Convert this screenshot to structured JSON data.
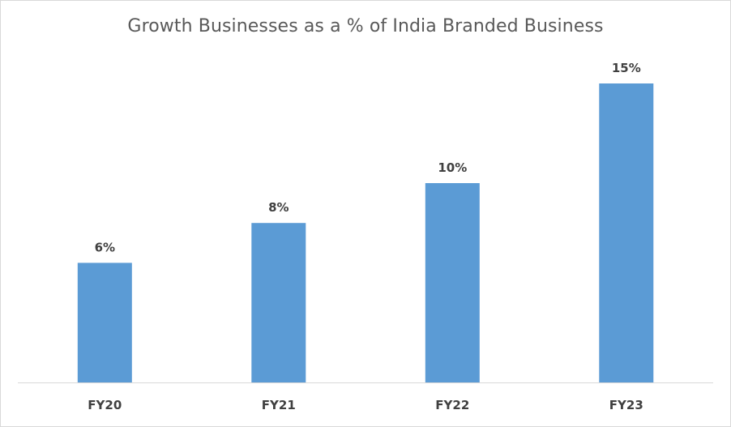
{
  "chart_data": {
    "type": "bar",
    "title": "Growth Businesses as a % of India Branded Business",
    "categories": [
      "FY20",
      "FY21",
      "FY22",
      "FY23"
    ],
    "values": [
      6,
      8,
      10,
      15
    ],
    "data_labels": [
      "6%",
      "8%",
      "10%",
      "15%"
    ],
    "unit": "%",
    "ylim": [
      0,
      15
    ],
    "grid": false,
    "legend": "none",
    "colors": {
      "bar": "#5b9bd5",
      "axis": "#d9d9d9",
      "text": "#404040",
      "title": "#595959"
    }
  }
}
